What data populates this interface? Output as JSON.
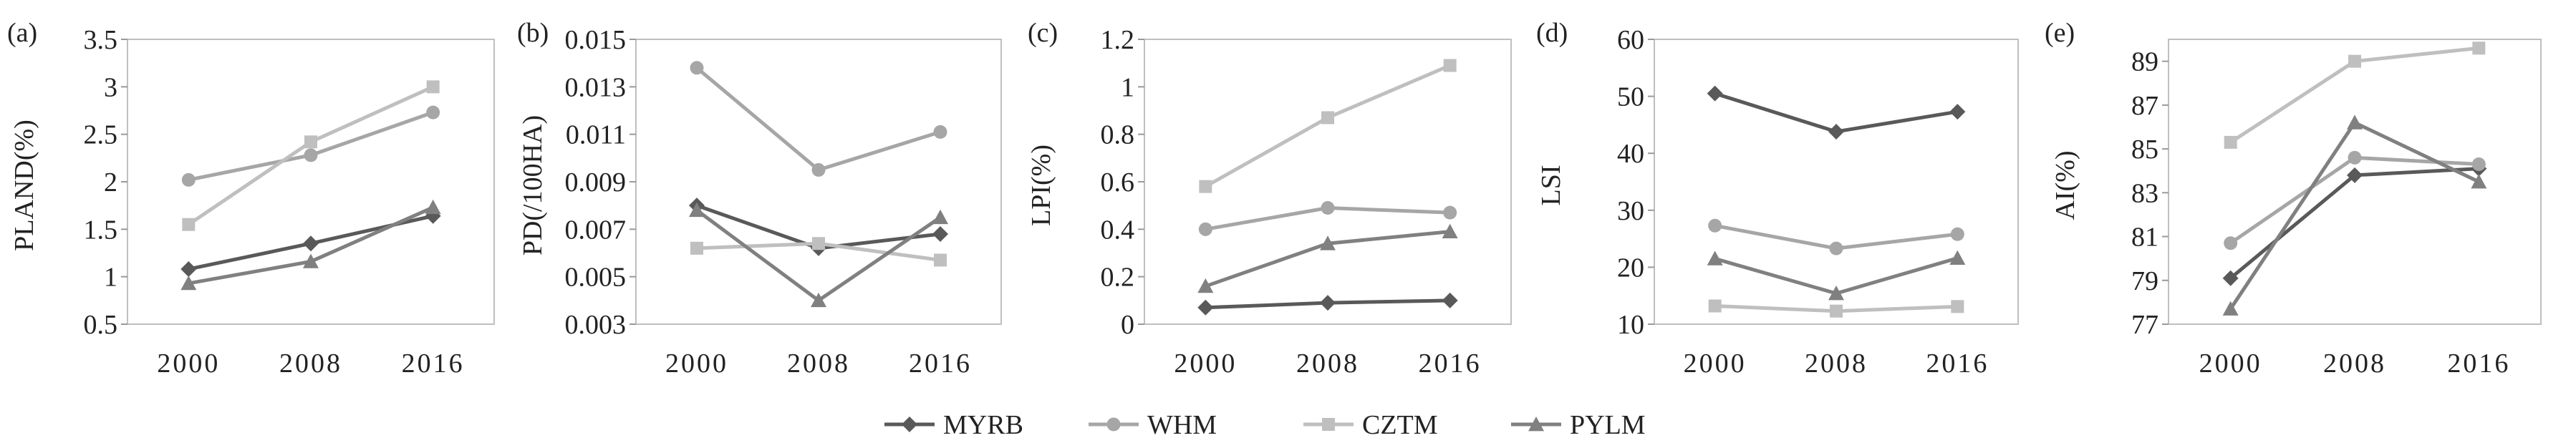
{
  "chart_data": [
    {
      "type": "line",
      "panel_label": "(a)",
      "ylabel": "PLAND(%)",
      "categories": [
        "2000",
        "2008",
        "2016"
      ],
      "ylim": [
        0.5,
        3.5
      ],
      "yticks": [
        "0.5",
        "1",
        "1.5",
        "2",
        "2.5",
        "3",
        "3.5"
      ],
      "grid": false,
      "series": [
        {
          "name": "MYRB",
          "values": [
            1.08,
            1.35,
            1.64
          ]
        },
        {
          "name": "WHM",
          "values": [
            2.02,
            2.28,
            2.73
          ]
        },
        {
          "name": "CZTM",
          "values": [
            1.55,
            2.42,
            3.0
          ]
        },
        {
          "name": "PYLM",
          "values": [
            0.93,
            1.16,
            1.73
          ]
        }
      ]
    },
    {
      "type": "line",
      "panel_label": "(b)",
      "ylabel": "PD(/100HA)",
      "categories": [
        "2000",
        "2008",
        "2016"
      ],
      "ylim": [
        0.003,
        0.015
      ],
      "yticks": [
        "0.003",
        "0.005",
        "0.007",
        "0.009",
        "0.011",
        "0.013",
        "0.015"
      ],
      "grid": false,
      "series": [
        {
          "name": "MYRB",
          "values": [
            0.008,
            0.0062,
            0.0068
          ]
        },
        {
          "name": "WHM",
          "values": [
            0.0138,
            0.0095,
            0.0111
          ]
        },
        {
          "name": "CZTM",
          "values": [
            0.0062,
            0.0064,
            0.0057
          ]
        },
        {
          "name": "PYLM",
          "values": [
            0.0078,
            0.004,
            0.0075
          ]
        }
      ]
    },
    {
      "type": "line",
      "panel_label": "(c)",
      "ylabel": "LPI(%)",
      "categories": [
        "2000",
        "2008",
        "2016"
      ],
      "ylim": [
        0,
        1.2
      ],
      "yticks": [
        "0",
        "0.2",
        "0.4",
        "0.6",
        "0.8",
        "1",
        "1.2"
      ],
      "grid": false,
      "series": [
        {
          "name": "MYRB",
          "values": [
            0.07,
            0.09,
            0.1
          ]
        },
        {
          "name": "WHM",
          "values": [
            0.4,
            0.49,
            0.47
          ]
        },
        {
          "name": "CZTM",
          "values": [
            0.58,
            0.87,
            1.09
          ]
        },
        {
          "name": "PYLM",
          "values": [
            0.16,
            0.34,
            0.39
          ]
        }
      ]
    },
    {
      "type": "line",
      "panel_label": "(d)",
      "ylabel": "LSI",
      "categories": [
        "2000",
        "2008",
        "2016"
      ],
      "ylim": [
        10,
        60
      ],
      "yticks": [
        "10",
        "20",
        "30",
        "40",
        "50",
        "60"
      ],
      "grid": false,
      "series": [
        {
          "name": "MYRB",
          "values": [
            50.5,
            43.8,
            47.3
          ]
        },
        {
          "name": "WHM",
          "values": [
            27.3,
            23.3,
            25.8
          ]
        },
        {
          "name": "CZTM",
          "values": [
            13.2,
            12.3,
            13.1
          ]
        },
        {
          "name": "PYLM",
          "values": [
            21.5,
            15.4,
            21.6
          ]
        }
      ]
    },
    {
      "type": "line",
      "panel_label": "(e)",
      "ylabel": "AI(%)",
      "categories": [
        "2000",
        "2008",
        "2016"
      ],
      "ylim": [
        77,
        90
      ],
      "yticks": [
        "77",
        "79",
        "81",
        "83",
        "85",
        "87",
        "89"
      ],
      "grid": false,
      "series": [
        {
          "name": "MYRB",
          "values": [
            79.1,
            83.8,
            84.1
          ]
        },
        {
          "name": "WHM",
          "values": [
            80.7,
            84.6,
            84.3
          ]
        },
        {
          "name": "CZTM",
          "values": [
            85.3,
            89.0,
            89.6
          ]
        },
        {
          "name": "PYLM",
          "values": [
            77.7,
            86.2,
            83.5
          ]
        }
      ]
    }
  ],
  "legend": {
    "placement": "bottom-center",
    "items": [
      {
        "name": "MYRB",
        "color": "#595959",
        "marker": "diamond"
      },
      {
        "name": "WHM",
        "color": "#a6a6a6",
        "marker": "circle"
      },
      {
        "name": "CZTM",
        "color": "#bfbfbf",
        "marker": "square"
      },
      {
        "name": "PYLM",
        "color": "#808080",
        "marker": "triangle"
      }
    ]
  }
}
